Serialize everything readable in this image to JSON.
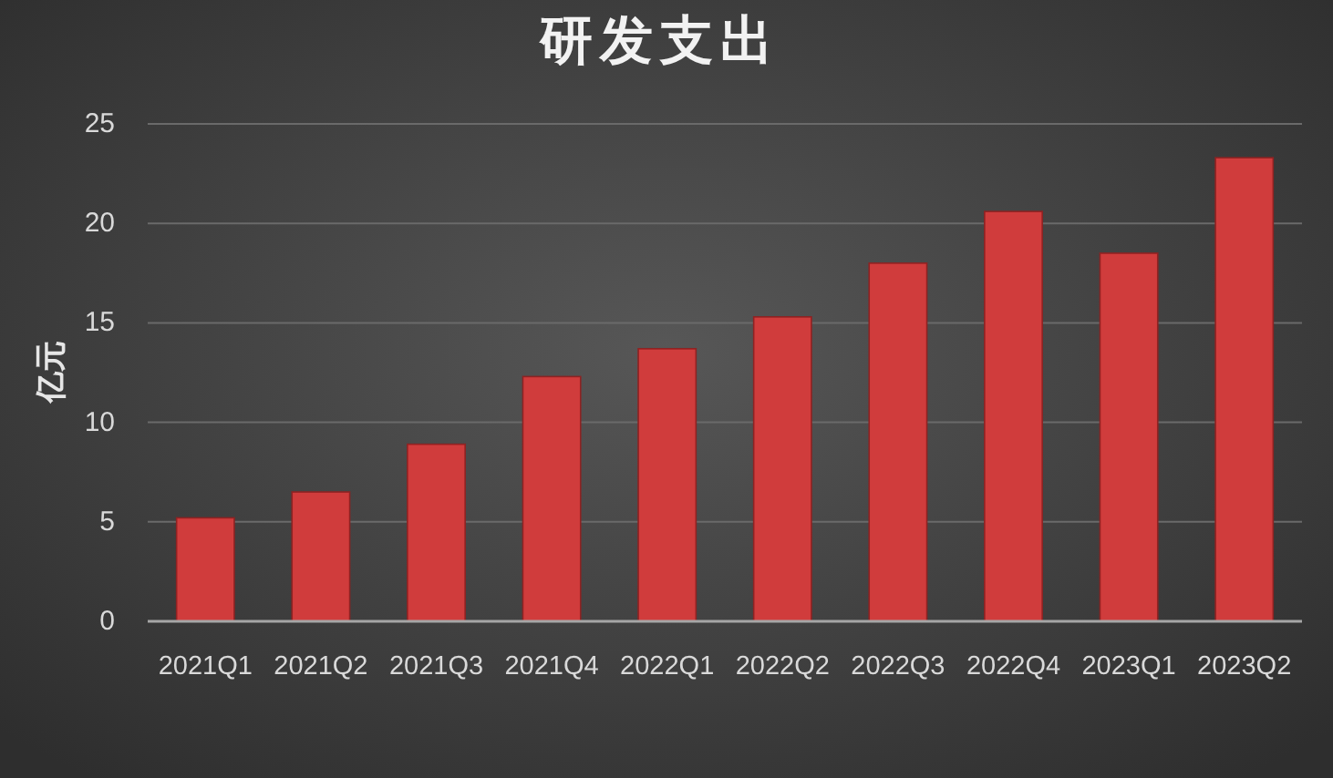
{
  "chart_data": {
    "type": "bar",
    "title": "研发支出",
    "ylabel": "亿元",
    "categories": [
      "2021Q1",
      "2021Q2",
      "2021Q3",
      "2021Q4",
      "2022Q1",
      "2022Q2",
      "2022Q3",
      "2022Q4",
      "2023Q1",
      "2023Q2"
    ],
    "values": [
      5.2,
      6.5,
      8.9,
      12.3,
      13.7,
      15.3,
      18.0,
      20.6,
      18.5,
      23.3
    ],
    "color": "#d03c3c",
    "ylim": [
      0,
      25
    ],
    "yticks": [
      0,
      5,
      10,
      15,
      20,
      25
    ],
    "grid": "y"
  }
}
